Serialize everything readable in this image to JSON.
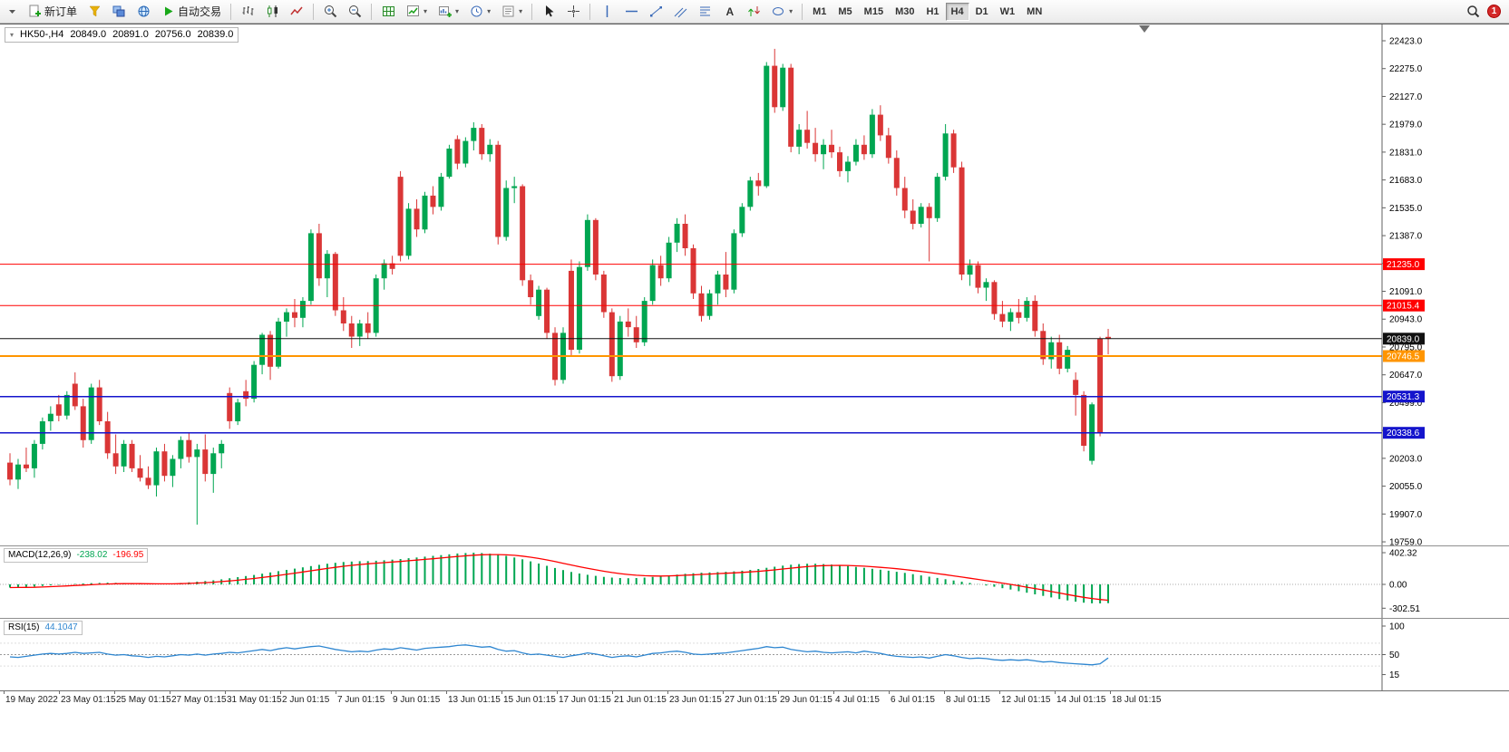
{
  "toolbar": {
    "new_order": "新订单",
    "auto_trading": "自动交易",
    "timeframes": [
      "M1",
      "M5",
      "M15",
      "M30",
      "H1",
      "H4",
      "D1",
      "W1",
      "MN"
    ],
    "active_timeframe": "H4",
    "notification_count": "1"
  },
  "chart": {
    "header": {
      "symbol": "HK50-,H4",
      "open": "20849.0",
      "high": "20891.0",
      "low": "20756.0",
      "close": "20839.0"
    },
    "price_axis": [
      "22423.0",
      "22275.0",
      "22127.0",
      "21979.0",
      "21831.0",
      "21683.0",
      "21535.0",
      "21387.0",
      "21239.0",
      "21091.0",
      "20943.0",
      "20795.0",
      "20647.0",
      "20499.0",
      "20351.0",
      "20203.0",
      "20055.0",
      "19907.0",
      "19759.0"
    ],
    "levels": [
      {
        "price": 21235.0,
        "label": "21235.0",
        "color": "#FF0000",
        "lw": 1
      },
      {
        "price": 21015.4,
        "label": "21015.4",
        "color": "#FF0000",
        "lw": 1
      },
      {
        "price": 20839.0,
        "label": "20839.0",
        "color": "#111111",
        "lw": 1
      },
      {
        "price": 20746.5,
        "label": "20746.5",
        "color": "#FF9500",
        "lw": 2
      },
      {
        "price": 20531.3,
        "label": "20531.3",
        "color": "#1414CC",
        "lw": 1.5
      },
      {
        "price": 20338.6,
        "label": "20338.6",
        "color": "#1414CC",
        "lw": 1.5
      }
    ],
    "candles": [
      [
        20180,
        20230,
        20060,
        20090
      ],
      [
        20090,
        20200,
        20040,
        20170
      ],
      [
        20170,
        20260,
        20130,
        20150
      ],
      [
        20150,
        20300,
        20100,
        20280
      ],
      [
        20280,
        20420,
        20250,
        20400
      ],
      [
        20400,
        20480,
        20350,
        20440
      ],
      [
        20490,
        20540,
        20400,
        20430
      ],
      [
        20430,
        20560,
        20410,
        20540
      ],
      [
        20600,
        20660,
        20460,
        20480
      ],
      [
        20480,
        20520,
        20260,
        20300
      ],
      [
        20300,
        20600,
        20280,
        20580
      ],
      [
        20580,
        20620,
        20380,
        20400
      ],
      [
        20400,
        20450,
        20200,
        20230
      ],
      [
        20230,
        20330,
        20120,
        20160
      ],
      [
        20160,
        20300,
        20130,
        20280
      ],
      [
        20280,
        20300,
        20130,
        20150
      ],
      [
        20150,
        20220,
        20080,
        20100
      ],
      [
        20100,
        20160,
        20040,
        20060
      ],
      [
        20060,
        20260,
        20000,
        20240
      ],
      [
        20240,
        20280,
        20080,
        20110
      ],
      [
        20110,
        20220,
        20050,
        20200
      ],
      [
        20200,
        20320,
        20150,
        20300
      ],
      [
        20300,
        20340,
        20180,
        20210
      ],
      [
        20210,
        20280,
        19850,
        20250
      ],
      [
        20250,
        20330,
        20080,
        20120
      ],
      [
        20120,
        20260,
        20020,
        20230
      ],
      [
        20230,
        20300,
        20150,
        20280
      ],
      [
        20550,
        20580,
        20360,
        20400
      ],
      [
        20400,
        20520,
        20380,
        20500
      ],
      [
        20560,
        20620,
        20480,
        20520
      ],
      [
        20520,
        20720,
        20500,
        20700
      ],
      [
        20700,
        20870,
        20650,
        20860
      ],
      [
        20860,
        20880,
        20620,
        20690
      ],
      [
        20690,
        20950,
        20680,
        20930
      ],
      [
        20930,
        21000,
        20850,
        20980
      ],
      [
        20980,
        21050,
        20900,
        20950
      ],
      [
        20950,
        21060,
        20900,
        21040
      ],
      [
        21040,
        21420,
        21020,
        21400
      ],
      [
        21400,
        21450,
        21120,
        21160
      ],
      [
        21160,
        21310,
        21060,
        21290
      ],
      [
        21290,
        21300,
        20960,
        20990
      ],
      [
        20990,
        21060,
        20880,
        20920
      ],
      [
        20920,
        20960,
        20790,
        20850
      ],
      [
        20850,
        20940,
        20800,
        20920
      ],
      [
        20920,
        20980,
        20840,
        20870
      ],
      [
        20870,
        21180,
        20850,
        21160
      ],
      [
        21160,
        21260,
        21100,
        21240
      ],
      [
        21240,
        21280,
        21180,
        21210
      ],
      [
        21700,
        21730,
        21250,
        21280
      ],
      [
        21280,
        21560,
        21260,
        21530
      ],
      [
        21530,
        21580,
        21380,
        21420
      ],
      [
        21420,
        21620,
        21400,
        21600
      ],
      [
        21600,
        21650,
        21500,
        21540
      ],
      [
        21540,
        21720,
        21520,
        21700
      ],
      [
        21700,
        21870,
        21690,
        21850
      ],
      [
        21900,
        21920,
        21740,
        21770
      ],
      [
        21770,
        21910,
        21750,
        21890
      ],
      [
        21890,
        21990,
        21840,
        21960
      ],
      [
        21960,
        21980,
        21790,
        21820
      ],
      [
        21820,
        21900,
        21780,
        21870
      ],
      [
        21870,
        21890,
        21340,
        21380
      ],
      [
        21380,
        21680,
        21360,
        21640
      ],
      [
        21640,
        21700,
        21560,
        21650
      ],
      [
        21650,
        21660,
        21120,
        21150
      ],
      [
        21150,
        21180,
        21020,
        21060
      ],
      [
        20960,
        21120,
        20940,
        21100
      ],
      [
        21100,
        21110,
        20840,
        20870
      ],
      [
        20870,
        20900,
        20590,
        20620
      ],
      [
        20620,
        20900,
        20600,
        20870
      ],
      [
        21200,
        21260,
        20750,
        20780
      ],
      [
        20780,
        21250,
        20760,
        21220
      ],
      [
        21220,
        21500,
        21200,
        21470
      ],
      [
        21470,
        21480,
        21150,
        21180
      ],
      [
        21180,
        21200,
        20950,
        20980
      ],
      [
        20980,
        21000,
        20610,
        20640
      ],
      [
        20640,
        20960,
        20620,
        20930
      ],
      [
        20930,
        21000,
        20850,
        20900
      ],
      [
        20900,
        20960,
        20790,
        20820
      ],
      [
        20820,
        21060,
        20800,
        21040
      ],
      [
        21040,
        21260,
        21020,
        21230
      ],
      [
        21230,
        21280,
        21120,
        21160
      ],
      [
        21160,
        21380,
        21140,
        21350
      ],
      [
        21350,
        21480,
        21300,
        21450
      ],
      [
        21450,
        21500,
        21280,
        21320
      ],
      [
        21320,
        21340,
        21050,
        21080
      ],
      [
        21080,
        21120,
        20930,
        20960
      ],
      [
        20960,
        21100,
        20940,
        21080
      ],
      [
        21080,
        21200,
        21020,
        21180
      ],
      [
        21180,
        21300,
        21060,
        21100
      ],
      [
        21100,
        21420,
        21080,
        21400
      ],
      [
        21400,
        21560,
        21380,
        21540
      ],
      [
        21540,
        21700,
        21520,
        21680
      ],
      [
        21680,
        21720,
        21600,
        21650
      ],
      [
        21650,
        22310,
        21640,
        22290
      ],
      [
        22290,
        22380,
        22040,
        22070
      ],
      [
        22070,
        22300,
        22050,
        22280
      ],
      [
        22280,
        22300,
        21830,
        21860
      ],
      [
        21860,
        21980,
        21820,
        21950
      ],
      [
        21950,
        22050,
        21850,
        21880
      ],
      [
        21880,
        21960,
        21780,
        21820
      ],
      [
        21820,
        21900,
        21740,
        21870
      ],
      [
        21870,
        21950,
        21800,
        21830
      ],
      [
        21830,
        21860,
        21700,
        21730
      ],
      [
        21730,
        21810,
        21670,
        21780
      ],
      [
        21780,
        21900,
        21760,
        21870
      ],
      [
        21870,
        21920,
        21790,
        21820
      ],
      [
        21820,
        22060,
        21800,
        22030
      ],
      [
        22030,
        22080,
        21890,
        21920
      ],
      [
        21920,
        21960,
        21770,
        21800
      ],
      [
        21800,
        21840,
        21600,
        21640
      ],
      [
        21640,
        21700,
        21480,
        21520
      ],
      [
        21520,
        21580,
        21420,
        21450
      ],
      [
        21450,
        21560,
        21430,
        21540
      ],
      [
        21540,
        21560,
        21250,
        21480
      ],
      [
        21480,
        21720,
        21460,
        21700
      ],
      [
        21700,
        21980,
        21680,
        21930
      ],
      [
        21930,
        21950,
        21720,
        21750
      ],
      [
        21750,
        21780,
        21150,
        21180
      ],
      [
        21180,
        21260,
        21120,
        21230
      ],
      [
        21230,
        21250,
        21080,
        21110
      ],
      [
        21110,
        21160,
        21040,
        21140
      ],
      [
        21140,
        21150,
        20940,
        20970
      ],
      [
        20970,
        21040,
        20900,
        20930
      ],
      [
        20930,
        21000,
        20880,
        20980
      ],
      [
        20980,
        21050,
        20920,
        20950
      ],
      [
        20950,
        21060,
        20930,
        21040
      ],
      [
        21040,
        21070,
        20850,
        20880
      ],
      [
        20880,
        20920,
        20700,
        20730
      ],
      [
        20730,
        20850,
        20680,
        20820
      ],
      [
        20820,
        20860,
        20650,
        20680
      ],
      [
        20680,
        20800,
        20660,
        20780
      ],
      [
        20620,
        20660,
        20430,
        20540
      ],
      [
        20540,
        20560,
        20240,
        20270
      ],
      [
        20190,
        20500,
        20170,
        20490
      ],
      [
        20840,
        20850,
        20320,
        20340
      ],
      [
        20849,
        20891,
        20756,
        20839
      ]
    ]
  },
  "macd": {
    "name": "MACD(12,26,9)",
    "value1": "-238.02",
    "value2": "-196.95",
    "axis": [
      "402.32",
      "0.00",
      "-302.51"
    ],
    "histogram": [
      -40,
      -38,
      -34,
      -28,
      -20,
      -12,
      -6,
      0,
      6,
      12,
      16,
      20,
      22,
      20,
      16,
      12,
      8,
      4,
      2,
      4,
      10,
      18,
      26,
      34,
      42,
      52,
      64,
      78,
      92,
      106,
      120,
      136,
      152,
      168,
      184,
      200,
      216,
      232,
      248,
      262,
      274,
      284,
      290,
      294,
      296,
      300,
      306,
      314,
      322,
      332,
      342,
      352,
      362,
      372,
      382,
      392,
      398,
      402,
      398,
      390,
      378,
      362,
      342,
      318,
      292,
      264,
      236,
      208,
      182,
      158,
      138,
      122,
      108,
      96,
      86,
      80,
      78,
      80,
      86,
      94,
      104,
      114,
      124,
      134,
      142,
      148,
      152,
      156,
      160,
      166,
      174,
      184,
      196,
      210,
      224,
      238,
      250,
      258,
      262,
      262,
      258,
      252,
      244,
      234,
      222,
      210,
      198,
      186,
      174,
      160,
      146,
      130,
      114,
      98,
      82,
      66,
      50,
      34,
      18,
      2,
      -14,
      -30,
      -48,
      -66,
      -86,
      -106,
      -126,
      -146,
      -166,
      -186,
      -204,
      -220,
      -232,
      -240,
      -242,
      -238
    ]
  },
  "rsi": {
    "name": "RSI(15)",
    "value": "44.1047",
    "axis": [
      "100",
      "50",
      "15"
    ],
    "values": [
      46,
      45,
      47,
      49,
      51,
      52,
      51,
      52,
      54,
      52,
      53,
      54,
      51,
      49,
      50,
      48,
      47,
      45,
      47,
      46,
      48,
      50,
      49,
      51,
      49,
      51,
      52,
      54,
      53,
      55,
      57,
      59,
      57,
      60,
      62,
      60,
      62,
      64,
      65,
      62,
      59,
      57,
      55,
      56,
      55,
      58,
      60,
      59,
      62,
      60,
      58,
      61,
      62,
      63,
      64,
      66,
      67,
      65,
      63,
      64,
      59,
      56,
      57,
      53,
      50,
      51,
      49,
      47,
      45,
      48,
      50,
      53,
      51,
      48,
      45,
      47,
      48,
      46,
      49,
      52,
      53,
      55,
      56,
      54,
      51,
      50,
      51,
      52,
      53,
      55,
      57,
      59,
      61,
      64,
      62,
      63,
      59,
      57,
      55,
      56,
      54,
      53,
      54,
      55,
      53,
      56,
      54,
      52,
      49,
      47,
      46,
      45,
      46,
      44,
      47,
      50,
      48,
      45,
      43,
      44,
      43,
      41,
      40,
      41,
      40,
      41,
      39,
      37,
      38,
      36,
      35,
      34,
      33,
      32,
      34,
      44.1
    ]
  },
  "time_axis": [
    "19 May 2022",
    "23 May 01:15",
    "25 May 01:15",
    "27 May 01:15",
    "31 May 01:15",
    "2 Jun 01:15",
    "7 Jun 01:15",
    "9 Jun 01:15",
    "13 Jun 01:15",
    "15 Jun 01:15",
    "17 Jun 01:15",
    "21 Jun 01:15",
    "23 Jun 01:15",
    "27 Jun 01:15",
    "29 Jun 01:15",
    "4 Jul 01:15",
    "6 Jul 01:15",
    "8 Jul 01:15",
    "12 Jul 01:15",
    "14 Jul 01:15",
    "18 Jul 01:15"
  ],
  "colors": {
    "up": "#00A651",
    "down": "#DA3636",
    "macd_hist": "#00A651",
    "macd_signal": "#FF0000",
    "rsi": "#2E86D0",
    "axis_text": "#000000"
  }
}
